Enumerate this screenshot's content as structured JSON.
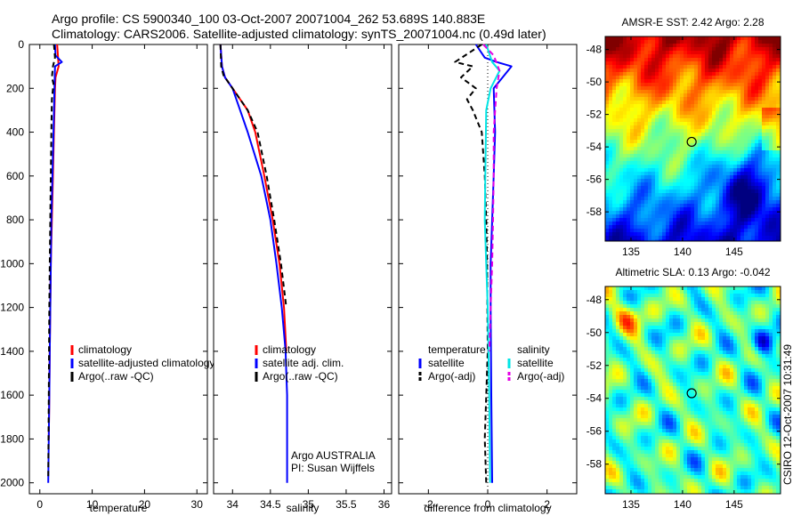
{
  "header": {
    "line1": "Argo profile: CS 5900340_100 03-Oct-2007 20071004_262 53.689S 140.883E",
    "line2": "Climatology: CARS2006. Satellite-adjusted climatology: synTS_20071004.nc (0.49d later)"
  },
  "credit": "CSIRO 12-Oct-2007 10:31:49",
  "colors": {
    "climatology": "#ff0000",
    "satellite": "#0000ff",
    "argo": "#000000",
    "salinity_satellite": "#00e5e5",
    "salinity_argo": "#e500e5",
    "marker": "#000000"
  },
  "chart_data": [
    {
      "type": "line",
      "id": "temperature",
      "xlabel": "temperature",
      "ylabel": "",
      "xlim": [
        -2,
        32
      ],
      "ylim": [
        2050,
        0
      ],
      "y_reversed": true,
      "xticks": [
        0,
        10,
        20,
        30
      ],
      "yticks": [
        0,
        200,
        400,
        600,
        800,
        1000,
        1200,
        1400,
        1600,
        1800,
        2000
      ],
      "legend": [
        "climatology",
        "satellite-adjusted climatology",
        "Argo(..raw -QC)"
      ],
      "series": [
        {
          "name": "climatology",
          "style": "solid",
          "color": "#ff0000",
          "x": [
            3.3,
            3.6,
            3.0,
            2.9,
            2.7,
            2.5,
            2.3,
            2.1,
            2.0,
            1.9,
            1.8,
            1.7
          ],
          "y": [
            0,
            100,
            150,
            200,
            400,
            600,
            800,
            1000,
            1200,
            1400,
            1600,
            1800
          ]
        },
        {
          "name": "satellite-adjusted climatology",
          "style": "solid",
          "color": "#0000ff",
          "x": [
            2.9,
            3.0,
            4.2,
            2.9,
            2.8,
            2.6,
            2.4,
            2.2,
            2.1,
            2.0,
            1.9,
            1.8,
            1.7,
            1.6
          ],
          "y": [
            0,
            50,
            80,
            100,
            200,
            400,
            600,
            800,
            1000,
            1200,
            1400,
            1600,
            1800,
            2000
          ]
        },
        {
          "name": "Argo(..raw -QC)",
          "style": "dashed",
          "color": "#000000",
          "x": [
            2.7,
            2.9,
            2.5,
            2.3,
            2.6,
            2.3,
            2.2,
            2.1,
            2.0,
            1.9,
            1.8,
            1.75,
            1.7,
            1.6
          ],
          "y": [
            0,
            60,
            100,
            150,
            180,
            250,
            400,
            600,
            800,
            1000,
            1200,
            1400,
            1600,
            1980
          ]
        }
      ]
    },
    {
      "type": "line",
      "id": "salinity",
      "xlabel": "salinity",
      "ylabel": "",
      "xlim": [
        33.75,
        36.1
      ],
      "ylim": [
        2050,
        0
      ],
      "y_reversed": true,
      "xticks": [
        34,
        34.5,
        35,
        35.5,
        36
      ],
      "legend": [
        "climatology",
        "satellite adj. clim.",
        "Argo(..raw -QC)"
      ],
      "annotations": [
        "Argo AUSTRALIA",
        "PI: Susan Wijffels"
      ],
      "series": [
        {
          "name": "climatology",
          "style": "solid",
          "color": "#ff0000",
          "x": [
            33.84,
            33.86,
            33.9,
            34.0,
            34.2,
            34.3,
            34.42,
            34.53,
            34.62,
            34.68,
            34.71
          ],
          "y": [
            0,
            100,
            150,
            200,
            300,
            400,
            600,
            800,
            1000,
            1200,
            1400
          ]
        },
        {
          "name": "satellite adj. clim.",
          "style": "solid",
          "color": "#0000ff",
          "x": [
            33.84,
            33.86,
            33.9,
            34.0,
            34.2,
            34.38,
            34.5,
            34.58,
            34.65,
            34.7,
            34.71,
            34.72,
            34.72,
            34.72
          ],
          "y": [
            0,
            100,
            150,
            200,
            400,
            600,
            800,
            1000,
            1200,
            1400,
            1500,
            1600,
            1800,
            2000
          ]
        },
        {
          "name": "Argo(..raw -QC)",
          "style": "dashed",
          "color": "#000000",
          "x": [
            33.84,
            33.85,
            33.88,
            34.0,
            34.2,
            34.33,
            34.45,
            34.55,
            34.64,
            34.71
          ],
          "y": [
            0,
            100,
            140,
            200,
            300,
            400,
            600,
            800,
            1000,
            1200
          ]
        }
      ]
    },
    {
      "type": "line",
      "id": "difference",
      "xlabel": "difference from climatology",
      "ylabel": "",
      "xlim": [
        -3,
        3
      ],
      "ylim": [
        2050,
        0
      ],
      "y_reversed": true,
      "xticks": [
        -2,
        0,
        2
      ],
      "legend_groups": [
        {
          "title": "temperature",
          "items": [
            "satellite",
            "Argo(-adj)"
          ]
        },
        {
          "title": "salinity",
          "items": [
            "satellite",
            "Argo(-adj)"
          ]
        }
      ],
      "series": [
        {
          "name": "temperature satellite",
          "style": "solid",
          "color": "#0000ff",
          "x": [
            -0.4,
            -0.1,
            0.3,
            0.8,
            0.5,
            0.2,
            0.25,
            0.2,
            0.15,
            0.1,
            0.1,
            0.12,
            0.15
          ],
          "y": [
            0,
            60,
            80,
            100,
            150,
            200,
            400,
            600,
            800,
            1000,
            1200,
            1600,
            2000
          ]
        },
        {
          "name": "temperature Argo(-adj)",
          "style": "dashed",
          "color": "#000000",
          "x": [
            -0.2,
            -1.1,
            -0.5,
            -0.9,
            -0.4,
            -0.7,
            -0.5,
            -0.2,
            -0.1,
            -0.05,
            -0.02,
            0.0,
            -0.1,
            -0.05
          ],
          "y": [
            0,
            80,
            100,
            150,
            200,
            250,
            300,
            400,
            600,
            800,
            1000,
            1400,
            1800,
            2000
          ]
        },
        {
          "name": "salinity satellite",
          "style": "solid",
          "color": "#00e5e5",
          "x": [
            -0.05,
            0.15,
            0.4,
            0.1,
            -0.05,
            -0.08,
            -0.1,
            -0.05,
            0.0,
            0.05,
            0.08
          ],
          "y": [
            0,
            80,
            120,
            200,
            300,
            600,
            800,
            1000,
            1200,
            1600,
            2000
          ]
        },
        {
          "name": "salinity Argo(-adj)",
          "style": "dashed",
          "color": "#e500e5",
          "x": [
            -0.15,
            0.2,
            0.4,
            0.3,
            0.2,
            0.2,
            0.18,
            0.15,
            0.1,
            0.05
          ],
          "y": [
            0,
            50,
            120,
            200,
            400,
            600,
            800,
            1000,
            1200,
            1400
          ]
        }
      ]
    },
    {
      "type": "heatmap",
      "id": "sst-map",
      "title": "AMSR-E SST: 2.42 Argo: 2.28",
      "xlim": [
        132.5,
        149.5
      ],
      "ylim": [
        -59.8,
        -47.2
      ],
      "xticks": [
        135,
        140,
        145
      ],
      "yticks": [
        -48,
        -50,
        -52,
        -54,
        -56,
        -58
      ],
      "marker": {
        "lon": 140.883,
        "lat": -53.689
      },
      "colormap": "jet"
    },
    {
      "type": "heatmap",
      "id": "sla-map",
      "title": "Altimetric SLA: 0.13 Argo: -0.042",
      "xlim": [
        132.5,
        149.5
      ],
      "ylim": [
        -59.8,
        -47.2
      ],
      "xticks": [
        135,
        140,
        145
      ],
      "yticks": [
        -48,
        -50,
        -52,
        -54,
        -56,
        -58
      ],
      "marker": {
        "lon": 140.883,
        "lat": -53.689
      },
      "colormap": "jet"
    }
  ]
}
